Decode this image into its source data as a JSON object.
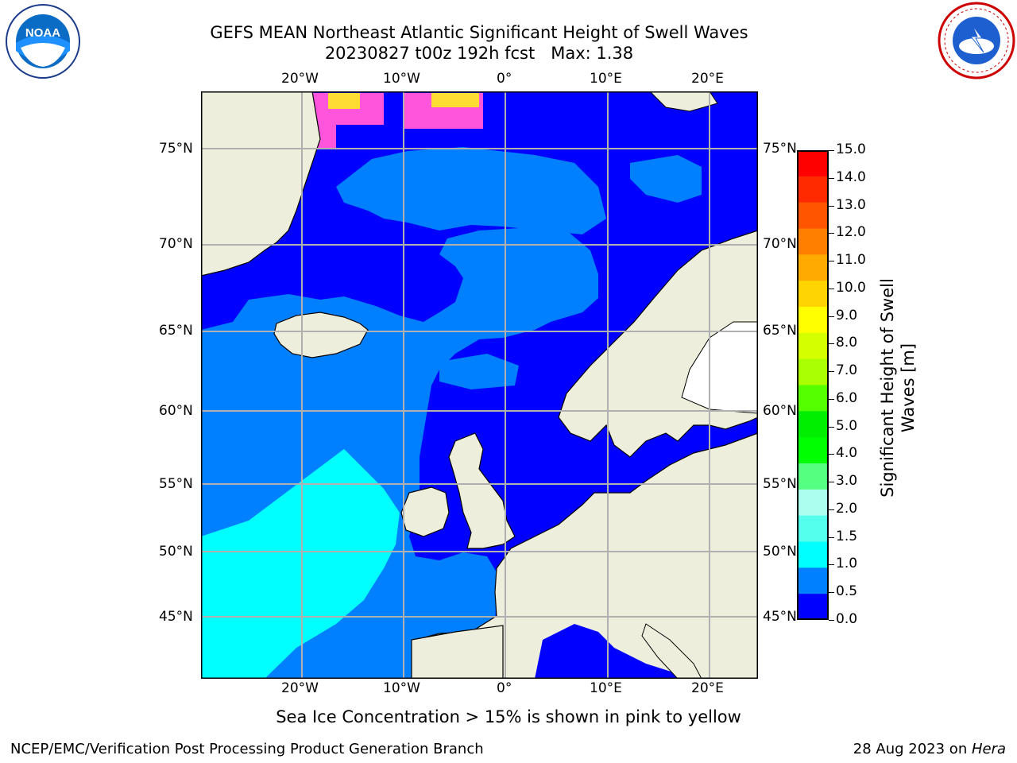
{
  "title_line1": "GEFS MEAN Northeast Atlantic Significant Height of Swell Waves",
  "title_line2": "20230827 t00z 192h fcst   Max: 1.38",
  "lon_labels": [
    "20°W",
    "10°W",
    "0°",
    "10°E",
    "20°E"
  ],
  "lat_labels": [
    "75°N",
    "70°N",
    "65°N",
    "60°N",
    "55°N",
    "50°N",
    "45°N"
  ],
  "colorbar": {
    "label_line1": "Significant Height of Swell",
    "label_line2": "Waves [m]",
    "ticks": [
      "15.0",
      "14.0",
      "13.0",
      "12.0",
      "11.0",
      "10.0",
      "9.0",
      "8.0",
      "7.0",
      "6.0",
      "5.0",
      "4.0",
      "3.0",
      "2.0",
      "1.5",
      "1.0",
      "0.5",
      "0.0"
    ],
    "colors": [
      "#ff0000",
      "#ff2a00",
      "#ff5500",
      "#ff7f00",
      "#ffaa00",
      "#ffd400",
      "#ffff00",
      "#d4ff00",
      "#aaff00",
      "#55ff00",
      "#00ee00",
      "#00ff00",
      "#55ff7f",
      "#aaffee",
      "#55ffee",
      "#00ffff",
      "#0080ff",
      "#0000ff"
    ]
  },
  "legend_note": "Sea Ice Concentration > 15% is shown in pink to yellow",
  "footer_left": "NCEP/EMC/Verification Post Processing Product Generation Branch",
  "footer_right_prefix": "28 Aug 2023 on ",
  "footer_right_italic": "Hera",
  "logos": {
    "left": "noaa-logo",
    "right": "nws-logo"
  },
  "map_colors": {
    "ocean_low": "#0000ff",
    "ocean_mid": "#0080ff",
    "ocean_high": "#00ffff",
    "land": "#eeeedd",
    "grid": "#b0b0b0",
    "ice_pink": "#ff55dd",
    "ice_yellow": "#ffdd33"
  }
}
